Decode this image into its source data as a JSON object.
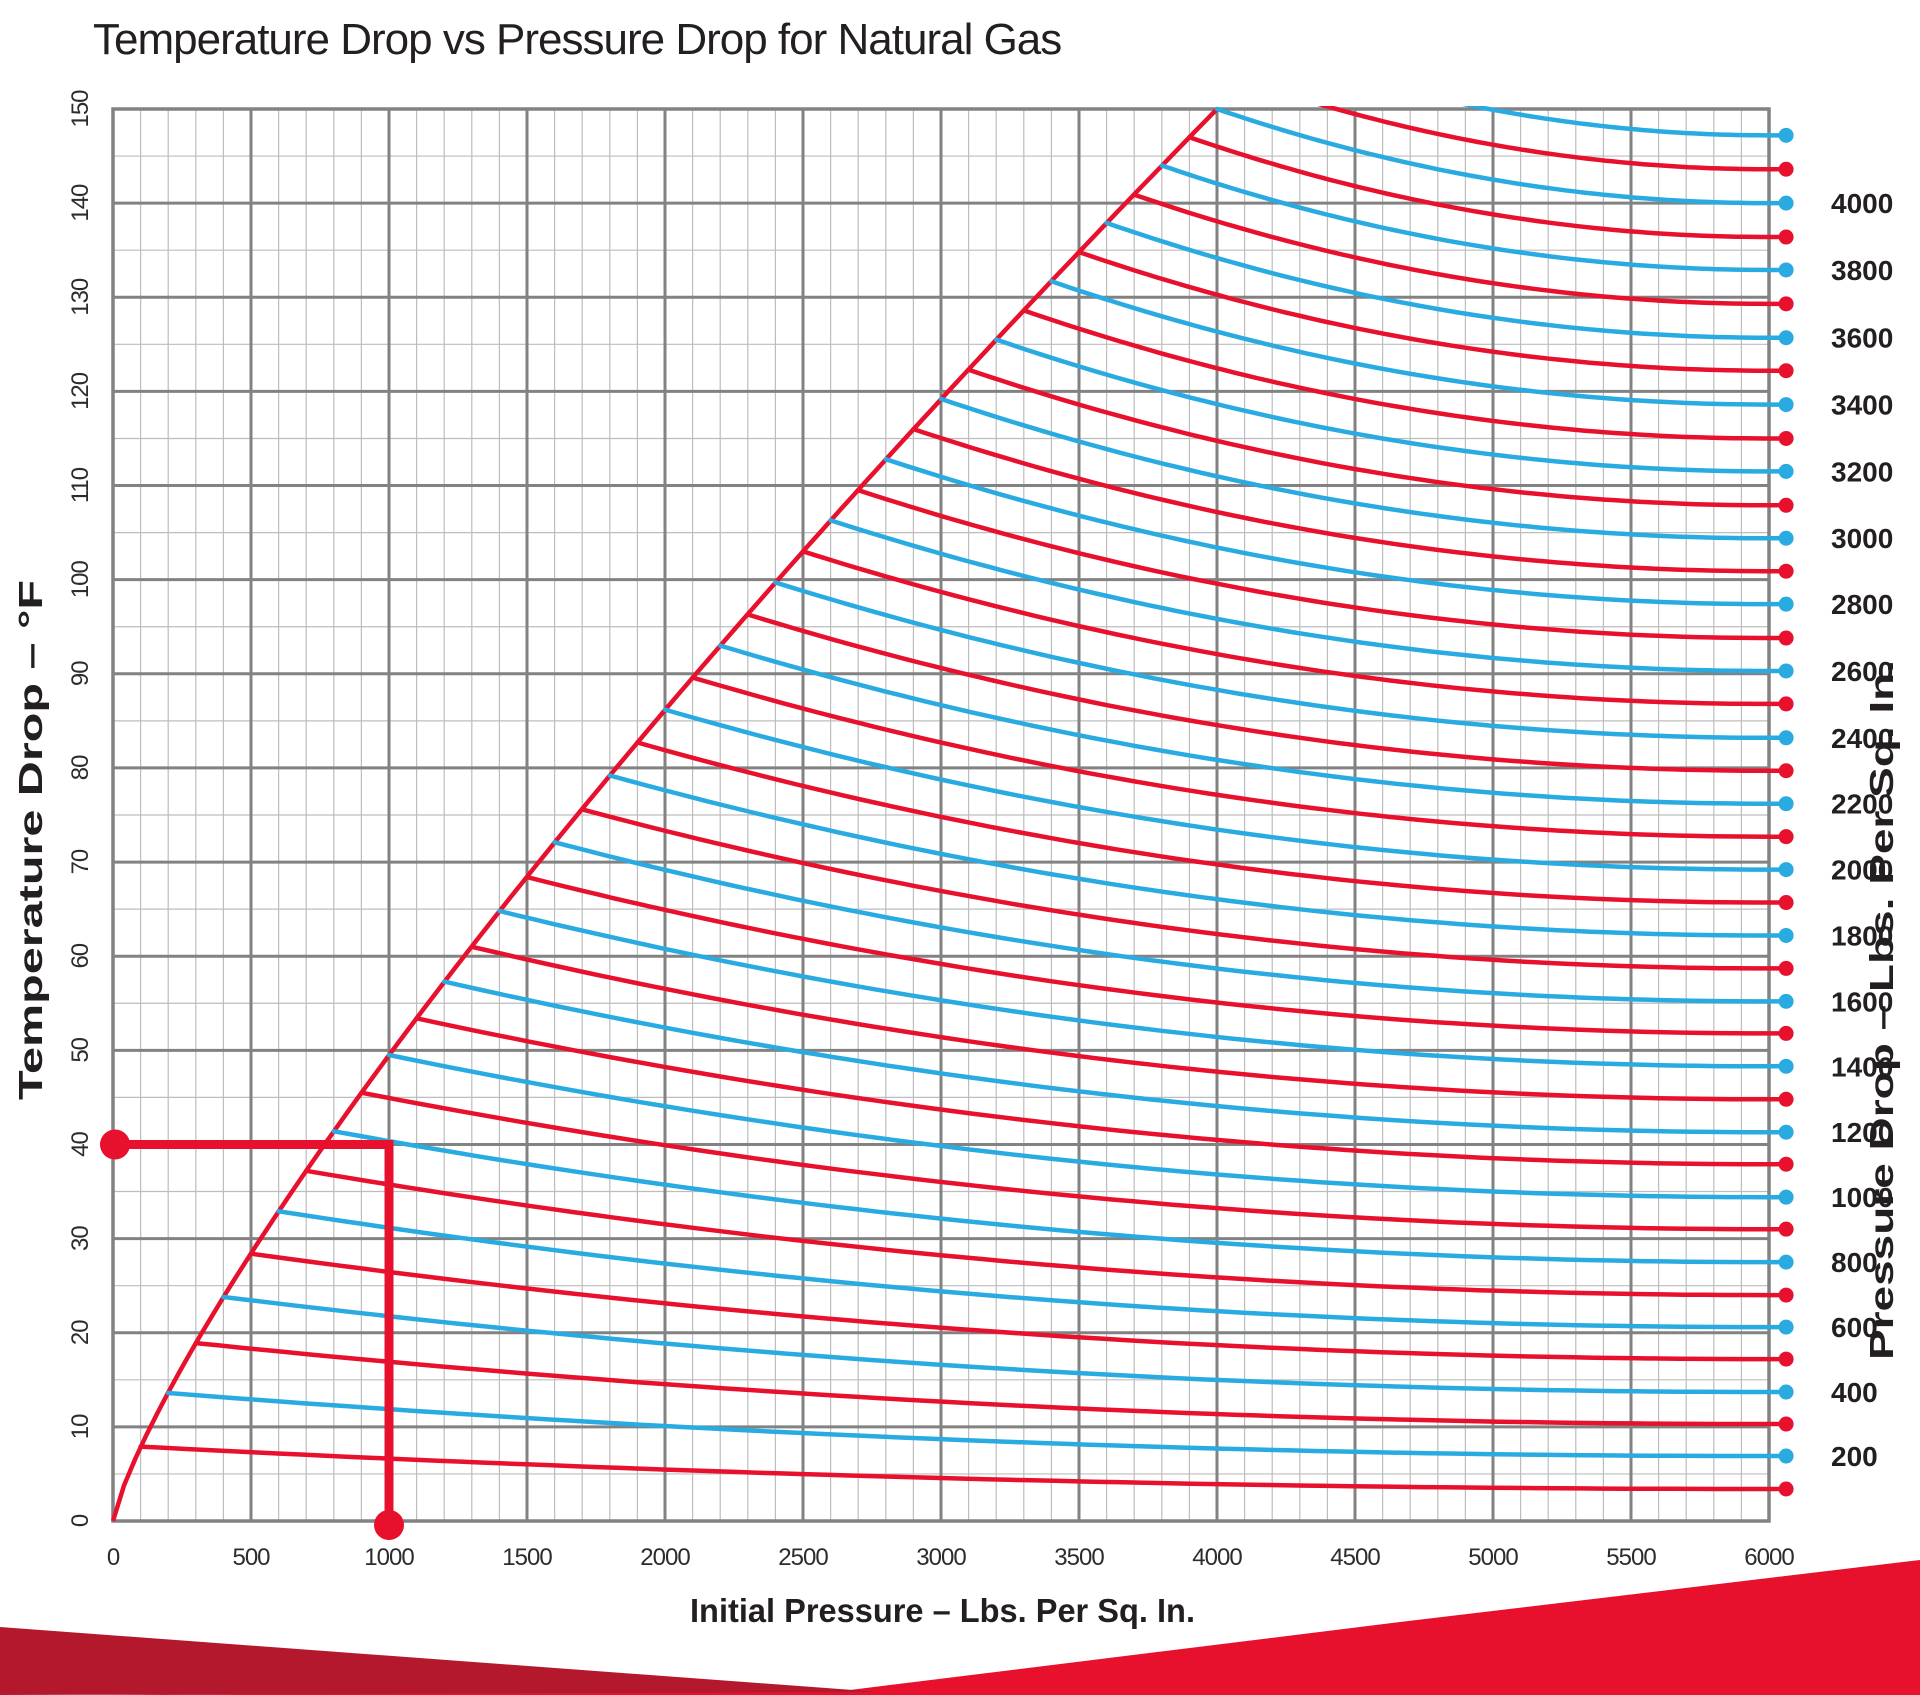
{
  "title": "Temperature Drop vs Pressure Drop for Natural Gas",
  "colors": {
    "red": "#e8112d",
    "blue": "#29abe2",
    "banner_dark_red": "#b4182d",
    "grid_major": "#828282",
    "grid_minor": "#bdbdbd",
    "text": "#231f20"
  },
  "x_axis": {
    "label": "Initial Pressure – Lbs. Per Sq. In.",
    "min": 0,
    "max": 6000,
    "major_step": 500,
    "minor_step": 100,
    "ticks": [
      0,
      500,
      1000,
      1500,
      2000,
      2500,
      3000,
      3500,
      4000,
      4500,
      5000,
      5500,
      6000
    ]
  },
  "y_axis": {
    "label": "Temperature Drop – °F",
    "min": 0,
    "max": 150,
    "major_step": 10,
    "minor_step": 5,
    "ticks": [
      0,
      10,
      20,
      30,
      40,
      50,
      60,
      70,
      80,
      90,
      100,
      110,
      120,
      130,
      140,
      150
    ]
  },
  "right_axis": {
    "label": "Pressure Drop – Lbs. Per Sq. In.",
    "labeled_values": [
      200,
      400,
      600,
      800,
      1000,
      1200,
      1400,
      1600,
      1800,
      2000,
      2200,
      2400,
      2600,
      2800,
      3000,
      3200,
      3400,
      3600,
      3800,
      4000
    ]
  },
  "annotation": {
    "initial_pressure": 1000,
    "temperature_drop": 40,
    "description": "Example read-out: initial pressure 1000 psi gives 40 °F temperature drop"
  },
  "chart_data": {
    "type": "line",
    "title": "Temperature Drop vs Pressure Drop for Natural Gas",
    "xlabel": "Initial Pressure – Lbs. Per Sq. In.",
    "ylabel": "Temperature Drop – °F",
    "y2label": "Pressure Drop – Lbs. Per Sq. In.",
    "xlim": [
      0,
      6000
    ],
    "ylim": [
      0,
      150
    ],
    "grid": true,
    "legend_position": "right-edge-dots",
    "envelope": {
      "description": "Locus of curve start points: temperature drop when pressure drop equals initial pressure",
      "form": "power",
      "scale": 150,
      "p_ref": 4000,
      "exponent": 0.8,
      "points": [
        [
          0,
          0
        ],
        [
          250,
          16.3
        ],
        [
          500,
          28.4
        ],
        [
          750,
          39.3
        ],
        [
          1000,
          49.5
        ],
        [
          1250,
          59.1
        ],
        [
          1500,
          68.4
        ],
        [
          1750,
          77.4
        ],
        [
          2000,
          86.2
        ],
        [
          2250,
          94.7
        ],
        [
          2500,
          103.0
        ],
        [
          2750,
          111.2
        ],
        [
          3000,
          119.2
        ],
        [
          3250,
          127.0
        ],
        [
          3500,
          134.8
        ],
        [
          3750,
          142.5
        ],
        [
          4000,
          150
        ]
      ]
    },
    "curve_shape_exponent": 2,
    "curves": [
      {
        "pressure_drop": 100,
        "color": "red",
        "start_temp": 7.9,
        "end_temp": 3.4
      },
      {
        "pressure_drop": 200,
        "color": "blue",
        "start_temp": 13.6,
        "end_temp": 6.9
      },
      {
        "pressure_drop": 300,
        "color": "red",
        "start_temp": 18.9,
        "end_temp": 10.3
      },
      {
        "pressure_drop": 400,
        "color": "blue",
        "start_temp": 23.8,
        "end_temp": 13.7
      },
      {
        "pressure_drop": 500,
        "color": "red",
        "start_temp": 28.4,
        "end_temp": 17.2
      },
      {
        "pressure_drop": 600,
        "color": "blue",
        "start_temp": 32.9,
        "end_temp": 20.6
      },
      {
        "pressure_drop": 700,
        "color": "red",
        "start_temp": 37.2,
        "end_temp": 24.0
      },
      {
        "pressure_drop": 800,
        "color": "blue",
        "start_temp": 41.4,
        "end_temp": 27.5
      },
      {
        "pressure_drop": 900,
        "color": "red",
        "start_temp": 45.5,
        "end_temp": 31.0
      },
      {
        "pressure_drop": 1000,
        "color": "blue",
        "start_temp": 49.5,
        "end_temp": 34.4
      },
      {
        "pressure_drop": 1100,
        "color": "red",
        "start_temp": 53.4,
        "end_temp": 37.9
      },
      {
        "pressure_drop": 1200,
        "color": "blue",
        "start_temp": 57.3,
        "end_temp": 41.3
      },
      {
        "pressure_drop": 1300,
        "color": "red",
        "start_temp": 61.0,
        "end_temp": 44.8
      },
      {
        "pressure_drop": 1400,
        "color": "blue",
        "start_temp": 64.8,
        "end_temp": 48.3
      },
      {
        "pressure_drop": 1500,
        "color": "red",
        "start_temp": 68.4,
        "end_temp": 51.8
      },
      {
        "pressure_drop": 1600,
        "color": "blue",
        "start_temp": 72.1,
        "end_temp": 55.2
      },
      {
        "pressure_drop": 1700,
        "color": "red",
        "start_temp": 75.6,
        "end_temp": 58.7
      },
      {
        "pressure_drop": 1800,
        "color": "blue",
        "start_temp": 79.2,
        "end_temp": 62.2
      },
      {
        "pressure_drop": 1900,
        "color": "red",
        "start_temp": 82.7,
        "end_temp": 65.7
      },
      {
        "pressure_drop": 2000,
        "color": "blue",
        "start_temp": 86.2,
        "end_temp": 69.2
      },
      {
        "pressure_drop": 2100,
        "color": "red",
        "start_temp": 89.6,
        "end_temp": 72.7
      },
      {
        "pressure_drop": 2200,
        "color": "blue",
        "start_temp": 93.0,
        "end_temp": 76.2
      },
      {
        "pressure_drop": 2300,
        "color": "red",
        "start_temp": 96.3,
        "end_temp": 79.7
      },
      {
        "pressure_drop": 2400,
        "color": "blue",
        "start_temp": 99.7,
        "end_temp": 83.2
      },
      {
        "pressure_drop": 2500,
        "color": "red",
        "start_temp": 103.0,
        "end_temp": 86.8
      },
      {
        "pressure_drop": 2600,
        "color": "blue",
        "start_temp": 106.3,
        "end_temp": 90.3
      },
      {
        "pressure_drop": 2700,
        "color": "red",
        "start_temp": 109.5,
        "end_temp": 93.8
      },
      {
        "pressure_drop": 2800,
        "color": "blue",
        "start_temp": 112.8,
        "end_temp": 97.4
      },
      {
        "pressure_drop": 2900,
        "color": "red",
        "start_temp": 116.0,
        "end_temp": 100.9
      },
      {
        "pressure_drop": 3000,
        "color": "blue",
        "start_temp": 119.2,
        "end_temp": 104.4
      },
      {
        "pressure_drop": 3100,
        "color": "red",
        "start_temp": 122.3,
        "end_temp": 107.9
      },
      {
        "pressure_drop": 3200,
        "color": "blue",
        "start_temp": 125.5,
        "end_temp": 111.5
      },
      {
        "pressure_drop": 3300,
        "color": "red",
        "start_temp": 128.6,
        "end_temp": 115.0
      },
      {
        "pressure_drop": 3400,
        "color": "blue",
        "start_temp": 131.7,
        "end_temp": 118.6
      },
      {
        "pressure_drop": 3500,
        "color": "red",
        "start_temp": 134.8,
        "end_temp": 122.2
      },
      {
        "pressure_drop": 3600,
        "color": "blue",
        "start_temp": 137.9,
        "end_temp": 125.7
      },
      {
        "pressure_drop": 3700,
        "color": "red",
        "start_temp": 140.9,
        "end_temp": 129.3
      },
      {
        "pressure_drop": 3800,
        "color": "blue",
        "start_temp": 144.0,
        "end_temp": 132.9
      },
      {
        "pressure_drop": 3900,
        "color": "red",
        "start_temp": 147.0,
        "end_temp": 136.4
      },
      {
        "pressure_drop": 4000,
        "color": "blue",
        "start_temp": 150.0,
        "end_temp": 140.0
      },
      {
        "pressure_drop": 4100,
        "color": "red",
        "start_temp": 153.0,
        "end_temp": 143.6
      },
      {
        "pressure_drop": 4200,
        "color": "blue",
        "start_temp": 156.0,
        "end_temp": 147.2
      }
    ]
  }
}
